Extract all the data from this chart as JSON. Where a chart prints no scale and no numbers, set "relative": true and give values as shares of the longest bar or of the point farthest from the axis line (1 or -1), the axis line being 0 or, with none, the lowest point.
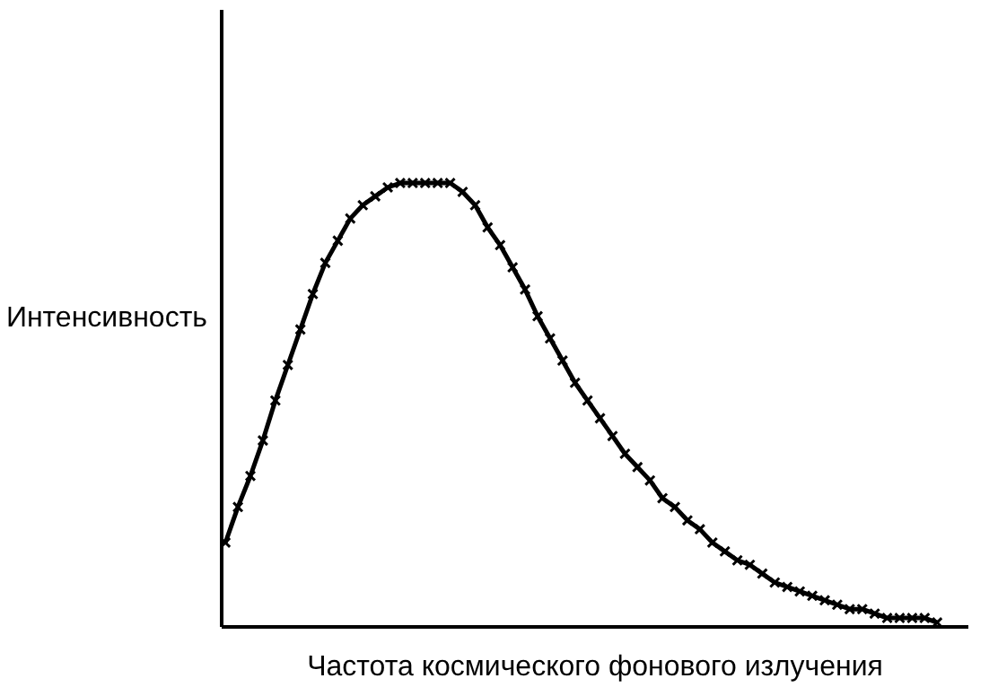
{
  "chart_data": {
    "type": "line",
    "relative": true,
    "xlabel": "Частота космического фонового излучения",
    "ylabel": "Интенсивность",
    "marker": "cross",
    "line_style": "solid",
    "grid": false,
    "categories": [
      null,
      null,
      null,
      null,
      null,
      null,
      null,
      null,
      null,
      null,
      null,
      null,
      null,
      null,
      null,
      null,
      null,
      null,
      null,
      null,
      null,
      null,
      null,
      null,
      null,
      null,
      null,
      null,
      null,
      null,
      null,
      null,
      null,
      null,
      null,
      null,
      null,
      null,
      null,
      null,
      null,
      null,
      null,
      null,
      null,
      null,
      null,
      null,
      null,
      null,
      null,
      null,
      null,
      null,
      null,
      null,
      null,
      null
    ],
    "series": [
      {
        "color": "#000000",
        "values": [
          0.19,
          0.27,
          0.34,
          0.42,
          0.51,
          0.59,
          0.67,
          0.75,
          0.82,
          0.87,
          0.92,
          0.95,
          0.97,
          0.99,
          1.0,
          1.0,
          1.0,
          1.0,
          1.0,
          0.98,
          0.95,
          0.9,
          0.86,
          0.81,
          0.76,
          0.7,
          0.65,
          0.6,
          0.55,
          0.51,
          0.47,
          0.43,
          0.39,
          0.36,
          0.33,
          0.29,
          0.27,
          0.24,
          0.22,
          0.19,
          0.17,
          0.15,
          0.14,
          0.12,
          0.1,
          0.09,
          0.08,
          0.07,
          0.06,
          0.05,
          0.04,
          0.04,
          0.03,
          0.02,
          0.02,
          0.02,
          0.02,
          0.01
        ]
      }
    ]
  }
}
